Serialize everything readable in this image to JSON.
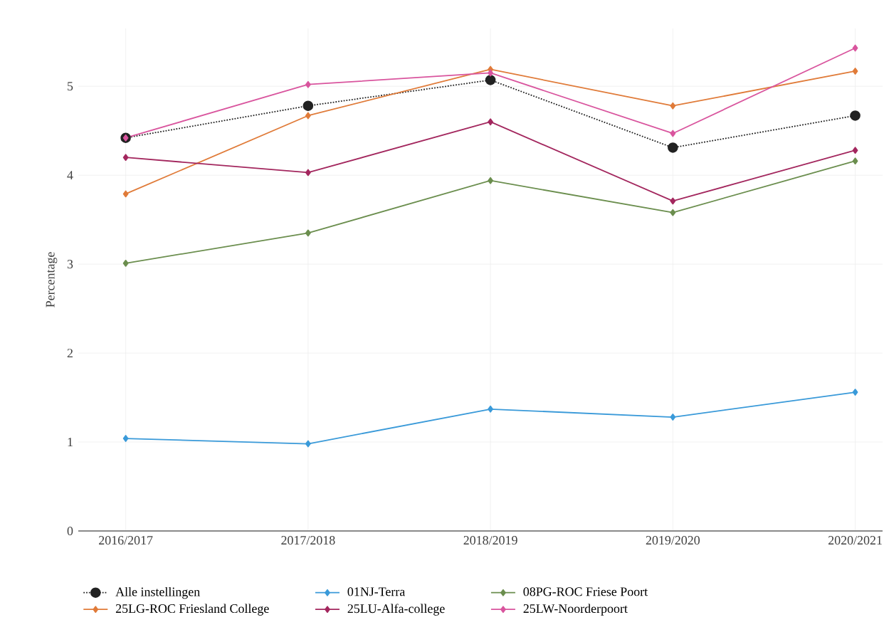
{
  "chart_data": {
    "type": "line",
    "ylabel": "Percentage",
    "categories": [
      "2016/2017",
      "2017/2018",
      "2018/2019",
      "2019/2020",
      "2020/2021"
    ],
    "ylim": [
      0,
      5.65
    ],
    "yticks": [
      0,
      1,
      2,
      3,
      4,
      5
    ],
    "grid": true,
    "legend": "bottom",
    "marker": "diamond",
    "series": [
      {
        "name": "Alle instellingen",
        "color": "#222222",
        "marker": "circle",
        "line_style": "dotted",
        "values": [
          4.42,
          4.78,
          5.07,
          4.31,
          4.67
        ]
      },
      {
        "name": "01NJ-Terra",
        "color": "#3a9ad9",
        "values": [
          1.04,
          0.98,
          1.37,
          1.28,
          1.56
        ]
      },
      {
        "name": "08PG-ROC Friese Poort",
        "color": "#6b8e4e",
        "values": [
          3.01,
          3.35,
          3.94,
          3.58,
          4.16
        ]
      },
      {
        "name": "25LG-ROC Friesland College",
        "color": "#e07b39",
        "values": [
          3.79,
          4.67,
          5.19,
          4.78,
          5.17
        ]
      },
      {
        "name": "25LU-Alfa-college",
        "color": "#a3275e",
        "values": [
          4.2,
          4.03,
          4.6,
          3.71,
          4.28
        ]
      },
      {
        "name": "25LW-Noorderpoort",
        "color": "#d9559e",
        "values": [
          4.42,
          5.02,
          5.15,
          4.47,
          5.43
        ]
      }
    ]
  }
}
